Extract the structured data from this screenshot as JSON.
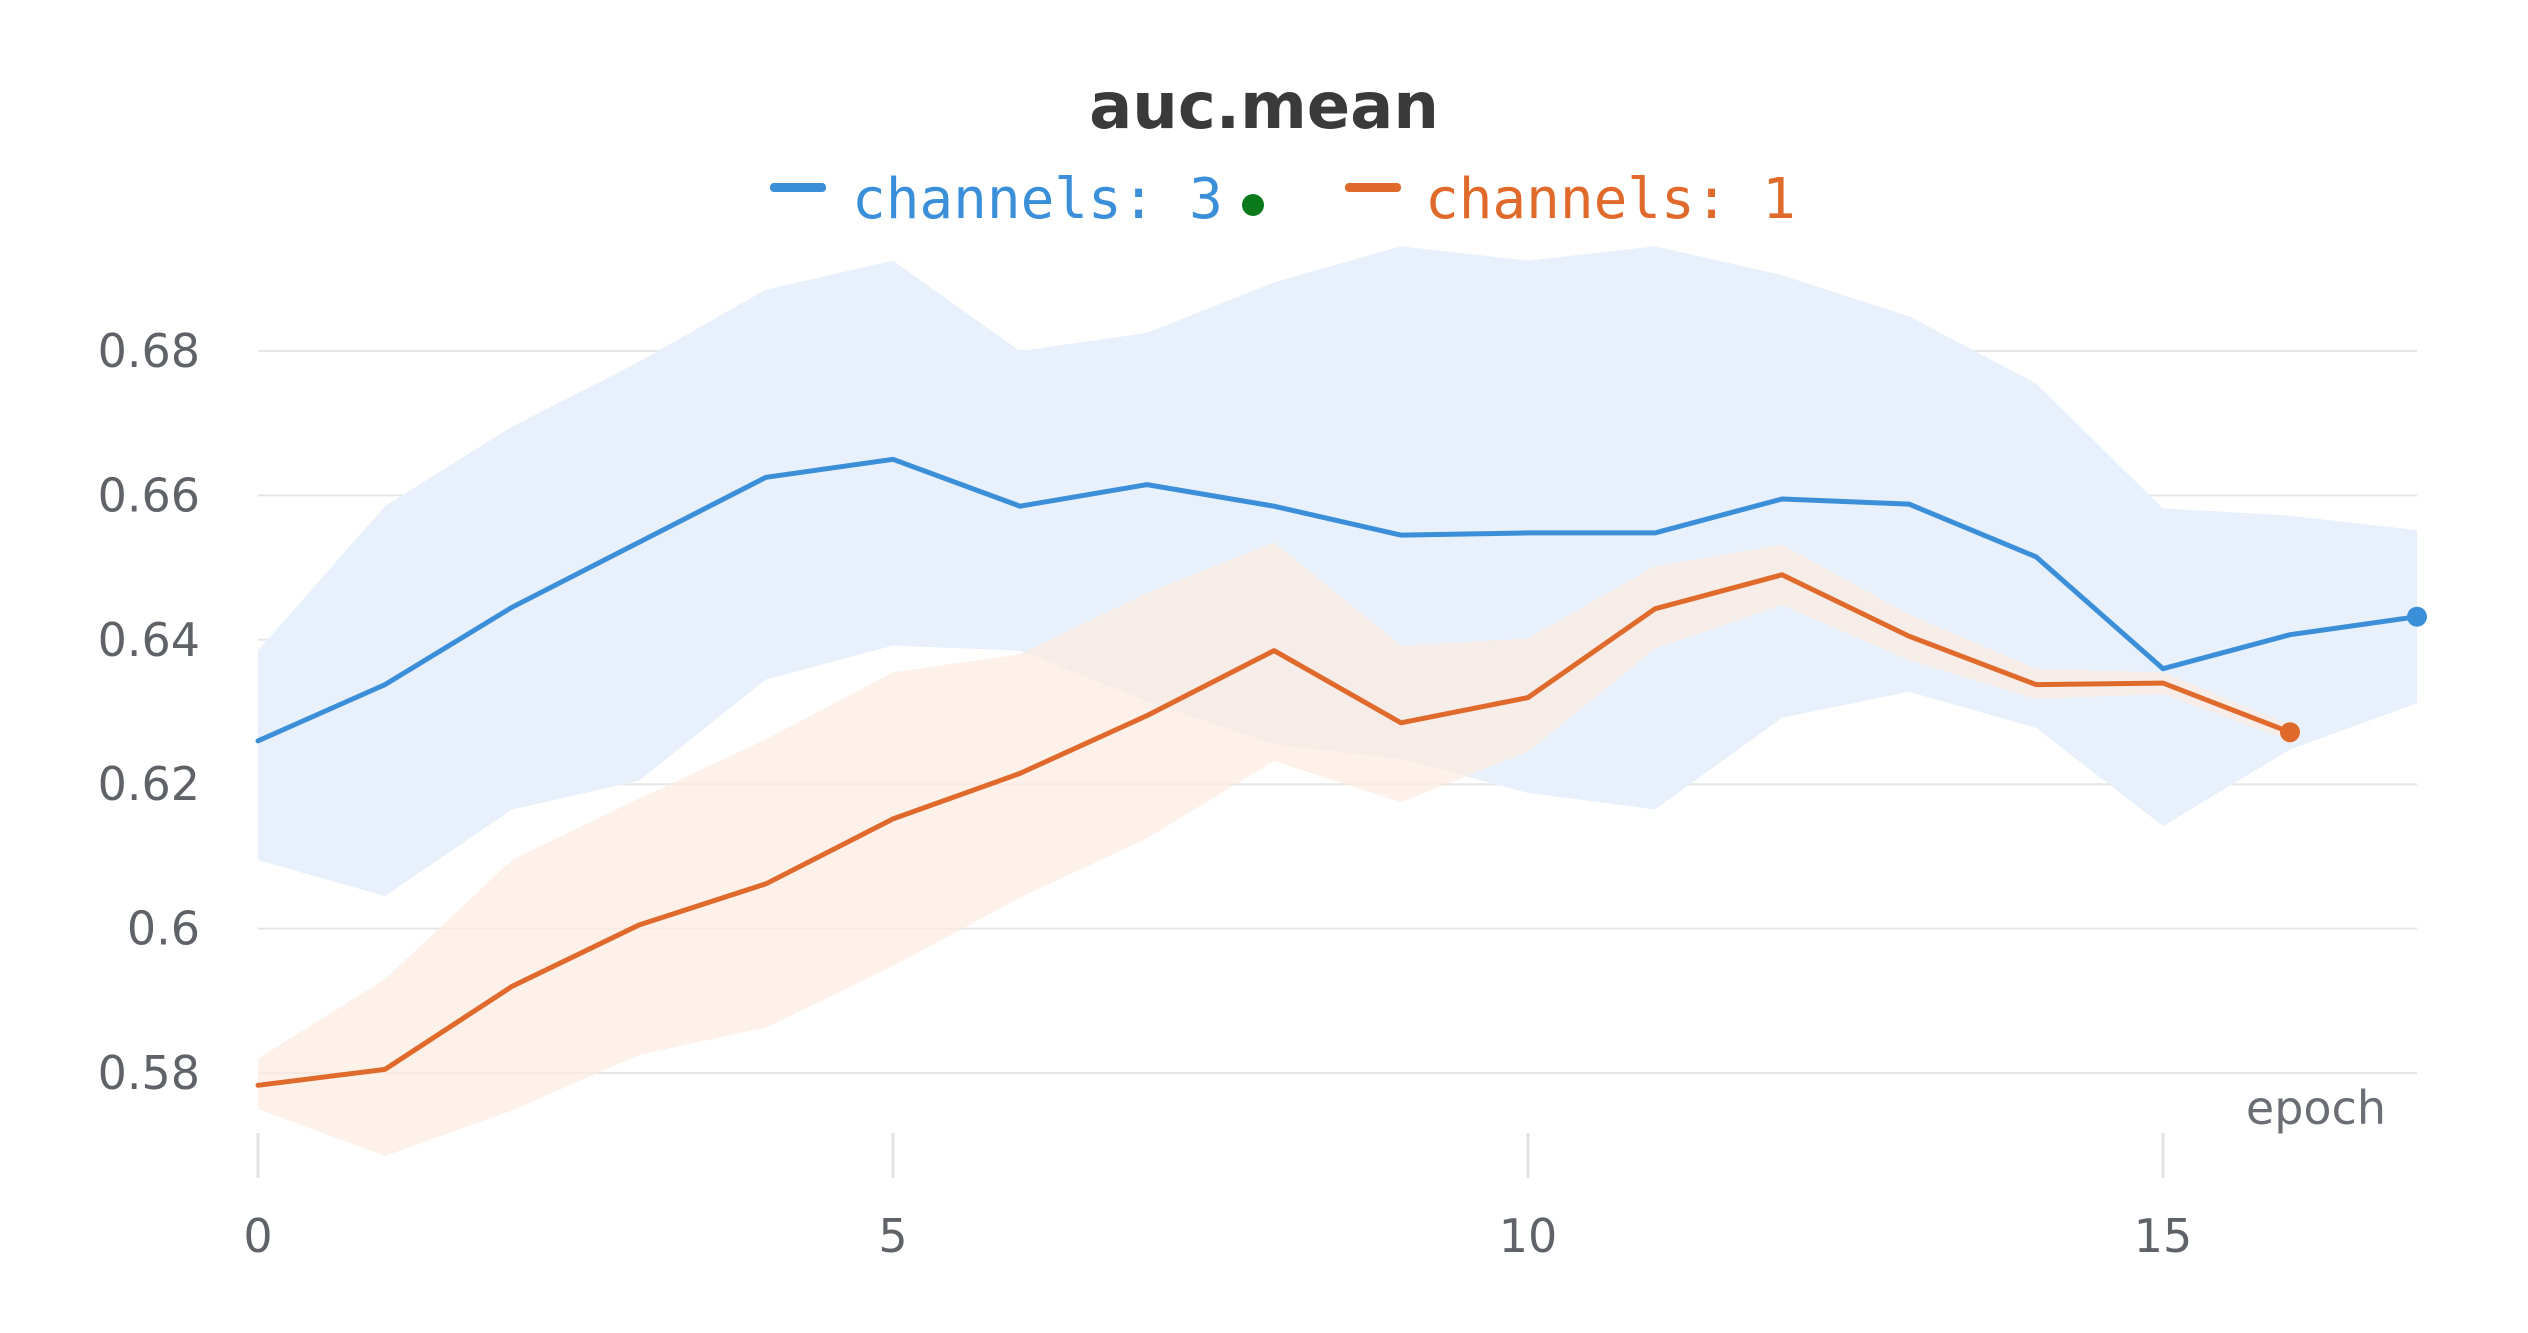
{
  "chart_data": {
    "type": "line",
    "title": "auc.mean",
    "xlabel": "epoch",
    "ylabel": "",
    "xlim": [
      0,
      17
    ],
    "ylim": [
      0.5685,
      0.695
    ],
    "x_ticks": [
      0,
      5,
      10,
      15
    ],
    "y_ticks": [
      0.58,
      0.6,
      0.62,
      0.64,
      0.66,
      0.68
    ],
    "y_tick_labels": [
      "0.58",
      "0.6",
      "0.62",
      "0.64",
      "0.66",
      "0.68"
    ],
    "grid": "horizontal",
    "legend_position": "top",
    "legend_indicator_color": "#0b7a1a",
    "series": [
      {
        "name": "channels: 3",
        "color": "#3b8fd9",
        "band_color": "#e7f0fb",
        "x": [
          0,
          1,
          2,
          3,
          4,
          5,
          6,
          7,
          8,
          9,
          10,
          11,
          12,
          13,
          14,
          15,
          16,
          17
        ],
        "values": [
          0.626,
          0.6338,
          0.6445,
          0.6535,
          0.6625,
          0.665,
          0.6585,
          0.6615,
          0.6585,
          0.6545,
          0.6548,
          0.6548,
          0.6595,
          0.6588,
          0.6515,
          0.636,
          0.6407,
          0.6432
        ],
        "upper": [
          0.6385,
          0.6585,
          0.6695,
          0.6785,
          0.6885,
          0.6925,
          0.68,
          0.6825,
          0.6895,
          0.6945,
          0.6925,
          0.6945,
          0.6905,
          0.6848,
          0.6755,
          0.6582,
          0.6572,
          0.6552
        ],
        "lower": [
          0.6095,
          0.6045,
          0.6165,
          0.6205,
          0.6345,
          0.6392,
          0.6385,
          0.6315,
          0.6255,
          0.6235,
          0.6188,
          0.6165,
          0.6292,
          0.6328,
          0.6278,
          0.6142,
          0.6248,
          0.6312
        ]
      },
      {
        "name": "channels: 1",
        "color": "#e06a2c",
        "band_color": "#fcebe1",
        "x": [
          0,
          1,
          2,
          3,
          4,
          5,
          6,
          7,
          8,
          9,
          10,
          11,
          12,
          13,
          14,
          15,
          16
        ],
        "values": [
          0.5783,
          0.5805,
          0.592,
          0.6005,
          0.6062,
          0.6152,
          0.6215,
          0.6295,
          0.6385,
          0.6285,
          0.632,
          0.6443,
          0.649,
          0.6405,
          0.6338,
          0.634,
          0.6272
        ],
        "upper": [
          0.582,
          0.593,
          0.6095,
          0.618,
          0.6262,
          0.6355,
          0.638,
          0.6465,
          0.6535,
          0.6392,
          0.6402,
          0.6502,
          0.6532,
          0.6435,
          0.636,
          0.6355,
          0.6282
        ],
        "lower": [
          0.575,
          0.5685,
          0.5748,
          0.5825,
          0.5863,
          0.5948,
          0.6043,
          0.6125,
          0.6232,
          0.6175,
          0.6245,
          0.6388,
          0.6448,
          0.6372,
          0.6318,
          0.6325,
          0.626
        ]
      }
    ]
  }
}
